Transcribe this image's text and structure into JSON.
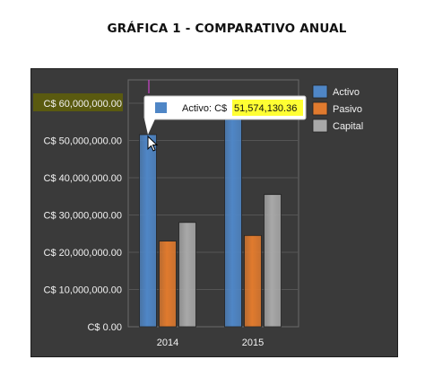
{
  "page_title": "GRÁFICA 1 - COMPARATIVO ANUAL",
  "chart_data": {
    "type": "bar",
    "title": "",
    "xlabel": "",
    "ylabel": "",
    "categories": [
      "2014",
      "2015"
    ],
    "series": [
      {
        "name": "Activo",
        "values": [
          51574130.36,
          60000000
        ],
        "color": "#4f86c6"
      },
      {
        "name": "Pasivo",
        "values": [
          23000000,
          24500000
        ],
        "color": "#e07a2e"
      },
      {
        "name": "Capital",
        "values": [
          28000000,
          35500000
        ],
        "color": "#a8a8a8"
      }
    ],
    "ylim": [
      0,
      60000000
    ],
    "y_ticks": [
      0,
      10000000,
      20000000,
      30000000,
      40000000,
      50000000,
      60000000
    ],
    "y_tick_labels": [
      "C$ 0.00",
      "C$ 10,000,000.00",
      "C$ 20,000,000.00",
      "C$ 30,000,000.00",
      "C$ 40,000,000.00",
      "C$ 50,000,000.00",
      "C$ 60,000,000.00"
    ],
    "highlighted_y_tick": "C$ 60,000,000.00",
    "grid": true,
    "legend_position": "top-right",
    "tooltip": {
      "series": "Activo",
      "category": "2014",
      "label": "Activo: C$",
      "value_text": "51,574,130.36",
      "cursor": "pointer-arrow"
    },
    "colors": {
      "background": "#3a3a3a",
      "tick_highlight": "#5a5a10",
      "value_highlight": "#ffff33",
      "crosshair": "#cc44cc"
    }
  }
}
